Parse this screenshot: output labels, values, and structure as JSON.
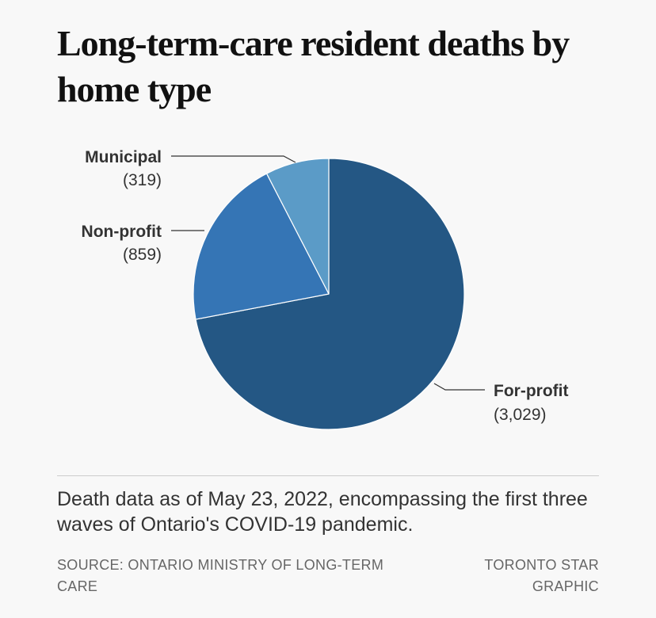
{
  "chart_data": {
    "type": "pie",
    "title": "Long-term-care resident deaths by home type",
    "slices": [
      {
        "label": "For-profit",
        "value": 3029,
        "value_label": "(3,029)",
        "color": "#245784"
      },
      {
        "label": "Non-profit",
        "value": 859,
        "value_label": "(859)",
        "color": "#3575b5"
      },
      {
        "label": "Municipal",
        "value": 319,
        "value_label": "(319)",
        "color": "#5b9bc7"
      }
    ]
  },
  "note": "Death data as of May 23, 2022, encompassing the first three waves of Ontario's COVID-19 pandemic.",
  "source": "SOURCE: ONTARIO MINISTRY OF LONG-TERM CARE",
  "credit": "TORONTO STAR GRAPHIC"
}
